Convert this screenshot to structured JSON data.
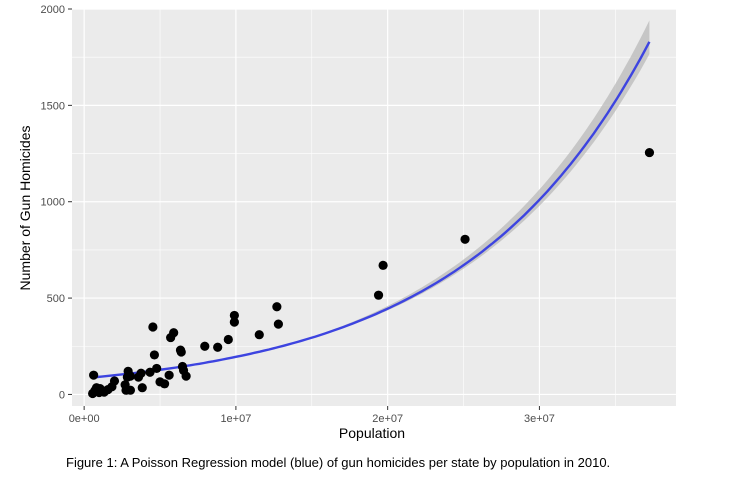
{
  "chart_data": {
    "type": "scatter",
    "xlabel": "Population",
    "ylabel": "Number of Gun Homicides",
    "xlim": [
      -800000,
      39000000
    ],
    "ylim": [
      -60,
      2000
    ],
    "x_ticks": [
      0,
      10000000,
      20000000,
      30000000
    ],
    "x_tick_labels": [
      "0e+00",
      "1e+07",
      "2e+07",
      "3e+07"
    ],
    "y_ticks": [
      0,
      500,
      1000,
      1500,
      2000
    ],
    "y_tick_labels": [
      "0",
      "500",
      "1000",
      "1500",
      "2000"
    ],
    "grid": true,
    "colors": {
      "panel": "#ebebeb",
      "grid": "#ffffff",
      "points": "#000000",
      "fit": "#3d44e0",
      "band": "#b9b9b9"
    },
    "points": [
      {
        "x": 560000,
        "y": 5
      },
      {
        "x": 625000,
        "y": 100
      },
      {
        "x": 710000,
        "y": 20
      },
      {
        "x": 815000,
        "y": 35
      },
      {
        "x": 900000,
        "y": 15
      },
      {
        "x": 990000,
        "y": 10
      },
      {
        "x": 1050000,
        "y": 30
      },
      {
        "x": 1250000,
        "y": 18
      },
      {
        "x": 1320000,
        "y": 12
      },
      {
        "x": 1570000,
        "y": 25
      },
      {
        "x": 1830000,
        "y": 40
      },
      {
        "x": 2000000,
        "y": 70
      },
      {
        "x": 2700000,
        "y": 50
      },
      {
        "x": 2760000,
        "y": 22
      },
      {
        "x": 2850000,
        "y": 90
      },
      {
        "x": 2900000,
        "y": 120
      },
      {
        "x": 3050000,
        "y": 95
      },
      {
        "x": 3050000,
        "y": 22
      },
      {
        "x": 3580000,
        "y": 90
      },
      {
        "x": 3750000,
        "y": 110
      },
      {
        "x": 3830000,
        "y": 35
      },
      {
        "x": 4340000,
        "y": 115
      },
      {
        "x": 4530000,
        "y": 350
      },
      {
        "x": 4630000,
        "y": 205
      },
      {
        "x": 4780000,
        "y": 135
      },
      {
        "x": 5000000,
        "y": 65
      },
      {
        "x": 5300000,
        "y": 55
      },
      {
        "x": 5600000,
        "y": 100
      },
      {
        "x": 5700000,
        "y": 295
      },
      {
        "x": 5900000,
        "y": 320
      },
      {
        "x": 6350000,
        "y": 230
      },
      {
        "x": 6400000,
        "y": 220
      },
      {
        "x": 6480000,
        "y": 145
      },
      {
        "x": 6550000,
        "y": 125
      },
      {
        "x": 6720000,
        "y": 95
      },
      {
        "x": 7950000,
        "y": 250
      },
      {
        "x": 8800000,
        "y": 245
      },
      {
        "x": 9500000,
        "y": 285
      },
      {
        "x": 9900000,
        "y": 375
      },
      {
        "x": 9900000,
        "y": 410
      },
      {
        "x": 11540000,
        "y": 310
      },
      {
        "x": 12700000,
        "y": 455
      },
      {
        "x": 12800000,
        "y": 365
      },
      {
        "x": 19400000,
        "y": 515
      },
      {
        "x": 19700000,
        "y": 670
      },
      {
        "x": 25100000,
        "y": 805
      },
      {
        "x": 37250000,
        "y": 1255
      }
    ],
    "fit": {
      "model": "poisson",
      "x_start": 560000,
      "x_end": 37250000,
      "samples": [
        [
          560000,
          88
        ],
        [
          10000000,
          195
        ],
        [
          20000000,
          445
        ],
        [
          30000000,
          1010
        ],
        [
          37250000,
          1830
        ]
      ]
    }
  },
  "caption": "Figure 1: A Poisson Regression model (blue) of gun homicides per state by population in 2010."
}
